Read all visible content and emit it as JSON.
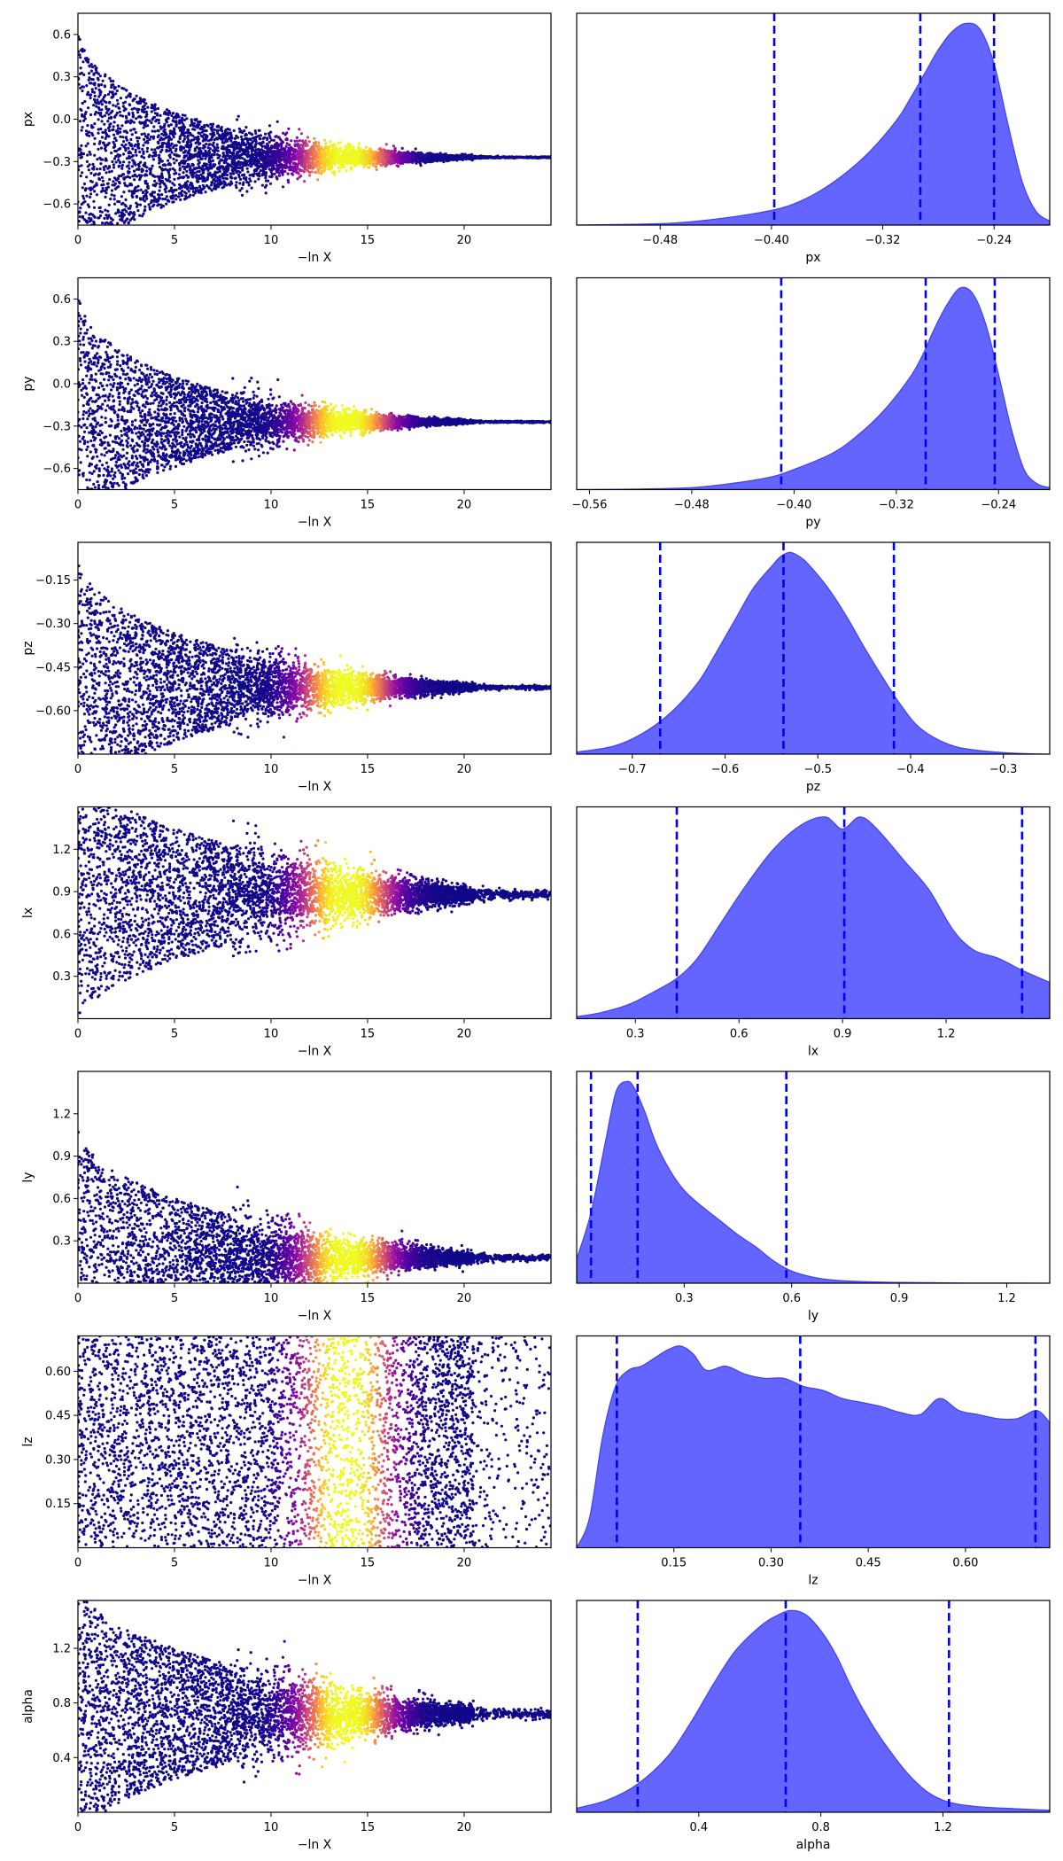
{
  "figure": {
    "background": "#ffffff",
    "kde_fill": "#6464ff",
    "kde_edge": "#4040ee",
    "quantile_line": "#0000ee"
  },
  "chart_data": [
    {
      "type": "scatter",
      "param": "px",
      "xlabel": "−ln X",
      "ylabel": "px",
      "xlim": [
        0,
        24.5
      ],
      "ylim": [
        -0.75,
        0.75
      ],
      "xticks": [
        "0",
        "5",
        "10",
        "15",
        "20"
      ],
      "xtick_values": [
        0,
        5,
        10,
        15,
        20
      ],
      "yticks": [
        "0.6",
        "0.3",
        "0.0",
        "−0.3",
        "−0.6"
      ],
      "ytick_values": [
        0.6,
        0.3,
        0.0,
        -0.3,
        -0.6
      ],
      "colormap": "plasma",
      "center": -0.27,
      "conv": 4
    },
    {
      "type": "area",
      "param": "px",
      "xlabel": "px",
      "xlim": [
        -0.54,
        -0.2
      ],
      "xticks": [
        "−0.48",
        "−0.40",
        "−0.32",
        "−0.24"
      ],
      "xtick_values": [
        -0.48,
        -0.4,
        -0.32,
        -0.24
      ],
      "kde": {
        "x": [
          -0.54,
          -0.5,
          -0.47,
          -0.44,
          -0.41,
          -0.39,
          -0.37,
          -0.35,
          -0.33,
          -0.31,
          -0.3,
          -0.29,
          -0.28,
          -0.27,
          -0.26,
          -0.25,
          -0.24,
          -0.23,
          -0.22,
          -0.21,
          -0.2
        ],
        "y": [
          0,
          0.004,
          0.01,
          0.03,
          0.06,
          0.09,
          0.15,
          0.24,
          0.36,
          0.52,
          0.63,
          0.75,
          0.87,
          0.96,
          1.0,
          0.97,
          0.8,
          0.5,
          0.22,
          0.07,
          0.02
        ]
      },
      "quantiles": [
        -0.398,
        -0.293,
        -0.24
      ]
    },
    {
      "type": "scatter",
      "param": "py",
      "xlabel": "−ln X",
      "ylabel": "py",
      "xlim": [
        0,
        24.5
      ],
      "ylim": [
        -0.75,
        0.75
      ],
      "xticks": [
        "0",
        "5",
        "10",
        "15",
        "20"
      ],
      "xtick_values": [
        0,
        5,
        10,
        15,
        20
      ],
      "yticks": [
        "0.6",
        "0.3",
        "0.0",
        "−0.3",
        "−0.6"
      ],
      "ytick_values": [
        0.6,
        0.3,
        0.0,
        -0.3,
        -0.6
      ],
      "colormap": "plasma",
      "center": -0.27,
      "conv": 4
    },
    {
      "type": "area",
      "param": "py",
      "xlabel": "py",
      "xlim": [
        -0.57,
        -0.2
      ],
      "xticks": [
        "−0.56",
        "−0.48",
        "−0.40",
        "−0.32",
        "−0.24"
      ],
      "xtick_values": [
        -0.56,
        -0.48,
        -0.4,
        -0.32,
        -0.24
      ],
      "kde": {
        "x": [
          -0.57,
          -0.52,
          -0.48,
          -0.45,
          -0.42,
          -0.4,
          -0.37,
          -0.35,
          -0.33,
          -0.31,
          -0.3,
          -0.29,
          -0.28,
          -0.27,
          -0.26,
          -0.25,
          -0.24,
          -0.23,
          -0.22,
          -0.21,
          -0.2
        ],
        "y": [
          0,
          0.003,
          0.01,
          0.03,
          0.06,
          0.1,
          0.18,
          0.27,
          0.39,
          0.55,
          0.66,
          0.8,
          0.92,
          1.0,
          0.97,
          0.82,
          0.57,
          0.3,
          0.1,
          0.03,
          0.01
        ]
      },
      "quantiles": [
        -0.41,
        -0.297,
        -0.243
      ]
    },
    {
      "type": "scatter",
      "param": "pz",
      "xlabel": "−ln X",
      "ylabel": "pz",
      "xlim": [
        0,
        24.5
      ],
      "ylim": [
        -0.75,
        -0.02
      ],
      "xticks": [
        "0",
        "5",
        "10",
        "15",
        "20"
      ],
      "xtick_values": [
        0,
        5,
        10,
        15,
        20
      ],
      "yticks": [
        "−0.15",
        "−0.30",
        "−0.45",
        "−0.60"
      ],
      "ytick_values": [
        -0.15,
        -0.3,
        -0.45,
        -0.6
      ],
      "colormap": "plasma",
      "center": -0.52,
      "conv": 3
    },
    {
      "type": "area",
      "param": "pz",
      "xlabel": "pz",
      "xlim": [
        -0.76,
        -0.25
      ],
      "xticks": [
        "−0.7",
        "−0.6",
        "−0.5",
        "−0.4",
        "−0.3"
      ],
      "xtick_values": [
        -0.7,
        -0.6,
        -0.5,
        -0.4,
        -0.3
      ],
      "kde": {
        "x": [
          -0.76,
          -0.72,
          -0.69,
          -0.66,
          -0.63,
          -0.61,
          -0.59,
          -0.57,
          -0.55,
          -0.54,
          -0.53,
          -0.52,
          -0.51,
          -0.49,
          -0.47,
          -0.45,
          -0.43,
          -0.41,
          -0.39,
          -0.36,
          -0.33,
          -0.29,
          -0.25
        ],
        "y": [
          0.01,
          0.04,
          0.1,
          0.2,
          0.35,
          0.5,
          0.66,
          0.82,
          0.93,
          0.98,
          1.0,
          0.98,
          0.94,
          0.83,
          0.69,
          0.53,
          0.38,
          0.24,
          0.13,
          0.05,
          0.02,
          0.005,
          0
        ]
      },
      "quantiles": [
        -0.67,
        -0.537,
        -0.418
      ]
    },
    {
      "type": "scatter",
      "param": "lx",
      "xlabel": "−ln X",
      "ylabel": "lx",
      "xlim": [
        0,
        24.5
      ],
      "ylim": [
        0,
        1.5
      ],
      "xticks": [
        "0",
        "5",
        "10",
        "15",
        "20"
      ],
      "xtick_values": [
        0,
        5,
        10,
        15,
        20
      ],
      "yticks": [
        "1.2",
        "0.9",
        "0.6",
        "0.3"
      ],
      "ytick_values": [
        1.2,
        0.9,
        0.6,
        0.3
      ],
      "colormap": "plasma",
      "center": 0.88,
      "conv": 2
    },
    {
      "type": "area",
      "param": "lx",
      "xlabel": "lx",
      "xlim": [
        0.13,
        1.5
      ],
      "xticks": [
        "0.3",
        "0.6",
        "0.9",
        "1.2"
      ],
      "xtick_values": [
        0.3,
        0.6,
        0.9,
        1.2
      ],
      "kde": {
        "x": [
          0.13,
          0.2,
          0.28,
          0.35,
          0.42,
          0.48,
          0.55,
          0.62,
          0.7,
          0.78,
          0.85,
          0.9,
          0.95,
          1.0,
          1.08,
          1.15,
          1.22,
          1.28,
          1.35,
          1.42,
          1.5
        ],
        "y": [
          0.01,
          0.03,
          0.07,
          0.13,
          0.2,
          0.3,
          0.48,
          0.66,
          0.84,
          0.96,
          1.0,
          0.94,
          1.0,
          0.94,
          0.78,
          0.64,
          0.44,
          0.34,
          0.3,
          0.24,
          0.18
        ]
      },
      "quantiles": [
        0.42,
        0.905,
        1.42
      ]
    },
    {
      "type": "scatter",
      "param": "ly",
      "xlabel": "−ln X",
      "ylabel": "ly",
      "xlim": [
        0,
        24.5
      ],
      "ylim": [
        0,
        1.5
      ],
      "xticks": [
        "0",
        "5",
        "10",
        "15",
        "20"
      ],
      "xtick_values": [
        0,
        5,
        10,
        15,
        20
      ],
      "yticks": [
        "1.2",
        "0.9",
        "0.6",
        "0.3"
      ],
      "ytick_values": [
        1.2,
        0.9,
        0.6,
        0.3
      ],
      "colormap": "plasma",
      "center": 0.18,
      "conv": 2.5
    },
    {
      "type": "area",
      "param": "ly",
      "xlabel": "ly",
      "xlim": [
        0.0,
        1.32
      ],
      "xticks": [
        "0.3",
        "0.6",
        "0.9",
        "1.2"
      ],
      "xtick_values": [
        0.3,
        0.6,
        0.9,
        1.2
      ],
      "kde": {
        "x": [
          0.0,
          0.04,
          0.08,
          0.11,
          0.14,
          0.16,
          0.19,
          0.22,
          0.26,
          0.3,
          0.35,
          0.4,
          0.45,
          0.5,
          0.55,
          0.6,
          0.66,
          0.72,
          0.8,
          0.9,
          1.0,
          1.1,
          1.32
        ],
        "y": [
          0.12,
          0.35,
          0.7,
          0.95,
          1.0,
          0.97,
          0.85,
          0.7,
          0.56,
          0.46,
          0.38,
          0.31,
          0.24,
          0.18,
          0.11,
          0.06,
          0.03,
          0.015,
          0.008,
          0.004,
          0.002,
          0.001,
          0
        ]
      },
      "quantiles": [
        0.04,
        0.17,
        0.585
      ]
    },
    {
      "type": "scatter",
      "param": "lz",
      "xlabel": "−ln X",
      "ylabel": "lz",
      "xlim": [
        0,
        24.5
      ],
      "ylim": [
        0,
        0.72
      ],
      "xticks": [
        "0",
        "5",
        "10",
        "15",
        "20"
      ],
      "xtick_values": [
        0,
        5,
        10,
        15,
        20
      ],
      "yticks": [
        "0.60",
        "0.45",
        "0.30",
        "0.15"
      ],
      "ytick_values": [
        0.6,
        0.45,
        0.3,
        0.15
      ],
      "colormap": "plasma",
      "center": 0.36,
      "conv": 0
    },
    {
      "type": "area",
      "param": "lz",
      "xlabel": "lz",
      "xlim": [
        0.0,
        0.73
      ],
      "xticks": [
        "0.15",
        "0.30",
        "0.45",
        "0.60"
      ],
      "xtick_values": [
        0.15,
        0.3,
        0.45,
        0.6
      ],
      "kde": {
        "x": [
          0.0,
          0.02,
          0.04,
          0.06,
          0.08,
          0.1,
          0.12,
          0.14,
          0.16,
          0.18,
          0.2,
          0.23,
          0.26,
          0.29,
          0.32,
          0.35,
          0.38,
          0.41,
          0.44,
          0.47,
          0.5,
          0.53,
          0.56,
          0.59,
          0.62,
          0.65,
          0.68,
          0.71,
          0.73
        ],
        "y": [
          0.0,
          0.15,
          0.55,
          0.8,
          0.88,
          0.9,
          0.94,
          0.98,
          1.0,
          0.96,
          0.88,
          0.9,
          0.86,
          0.84,
          0.84,
          0.8,
          0.78,
          0.74,
          0.72,
          0.7,
          0.67,
          0.66,
          0.74,
          0.68,
          0.66,
          0.64,
          0.64,
          0.68,
          0.62
        ]
      },
      "quantiles": [
        0.062,
        0.345,
        0.708
      ]
    },
    {
      "type": "scatter",
      "param": "alpha",
      "xlabel": "−ln X",
      "ylabel": "alpha",
      "xlim": [
        0,
        24.5
      ],
      "ylim": [
        0,
        1.55
      ],
      "xticks": [
        "0",
        "5",
        "10",
        "15",
        "20"
      ],
      "xtick_values": [
        0,
        5,
        10,
        15,
        20
      ],
      "yticks": [
        "1.2",
        "0.8",
        "0.4"
      ],
      "ytick_values": [
        1.2,
        0.8,
        0.4
      ],
      "colormap": "plasma",
      "center": 0.72,
      "conv": 2
    },
    {
      "type": "area",
      "param": "alpha",
      "xlabel": "alpha",
      "xlim": [
        0.0,
        1.55
      ],
      "xticks": [
        "0.4",
        "0.8",
        "1.2"
      ],
      "xtick_values": [
        0.4,
        0.8,
        1.2
      ],
      "kde": {
        "x": [
          0.0,
          0.1,
          0.2,
          0.3,
          0.38,
          0.45,
          0.52,
          0.6,
          0.65,
          0.7,
          0.75,
          0.8,
          0.85,
          0.9,
          0.95,
          1.0,
          1.08,
          1.15,
          1.22,
          1.3,
          1.4,
          1.55
        ],
        "y": [
          0.02,
          0.06,
          0.14,
          0.28,
          0.46,
          0.64,
          0.8,
          0.92,
          0.97,
          1.0,
          0.98,
          0.9,
          0.78,
          0.62,
          0.48,
          0.36,
          0.2,
          0.1,
          0.05,
          0.03,
          0.02,
          0.01
        ]
      },
      "quantiles": [
        0.2,
        0.685,
        1.22
      ]
    }
  ]
}
